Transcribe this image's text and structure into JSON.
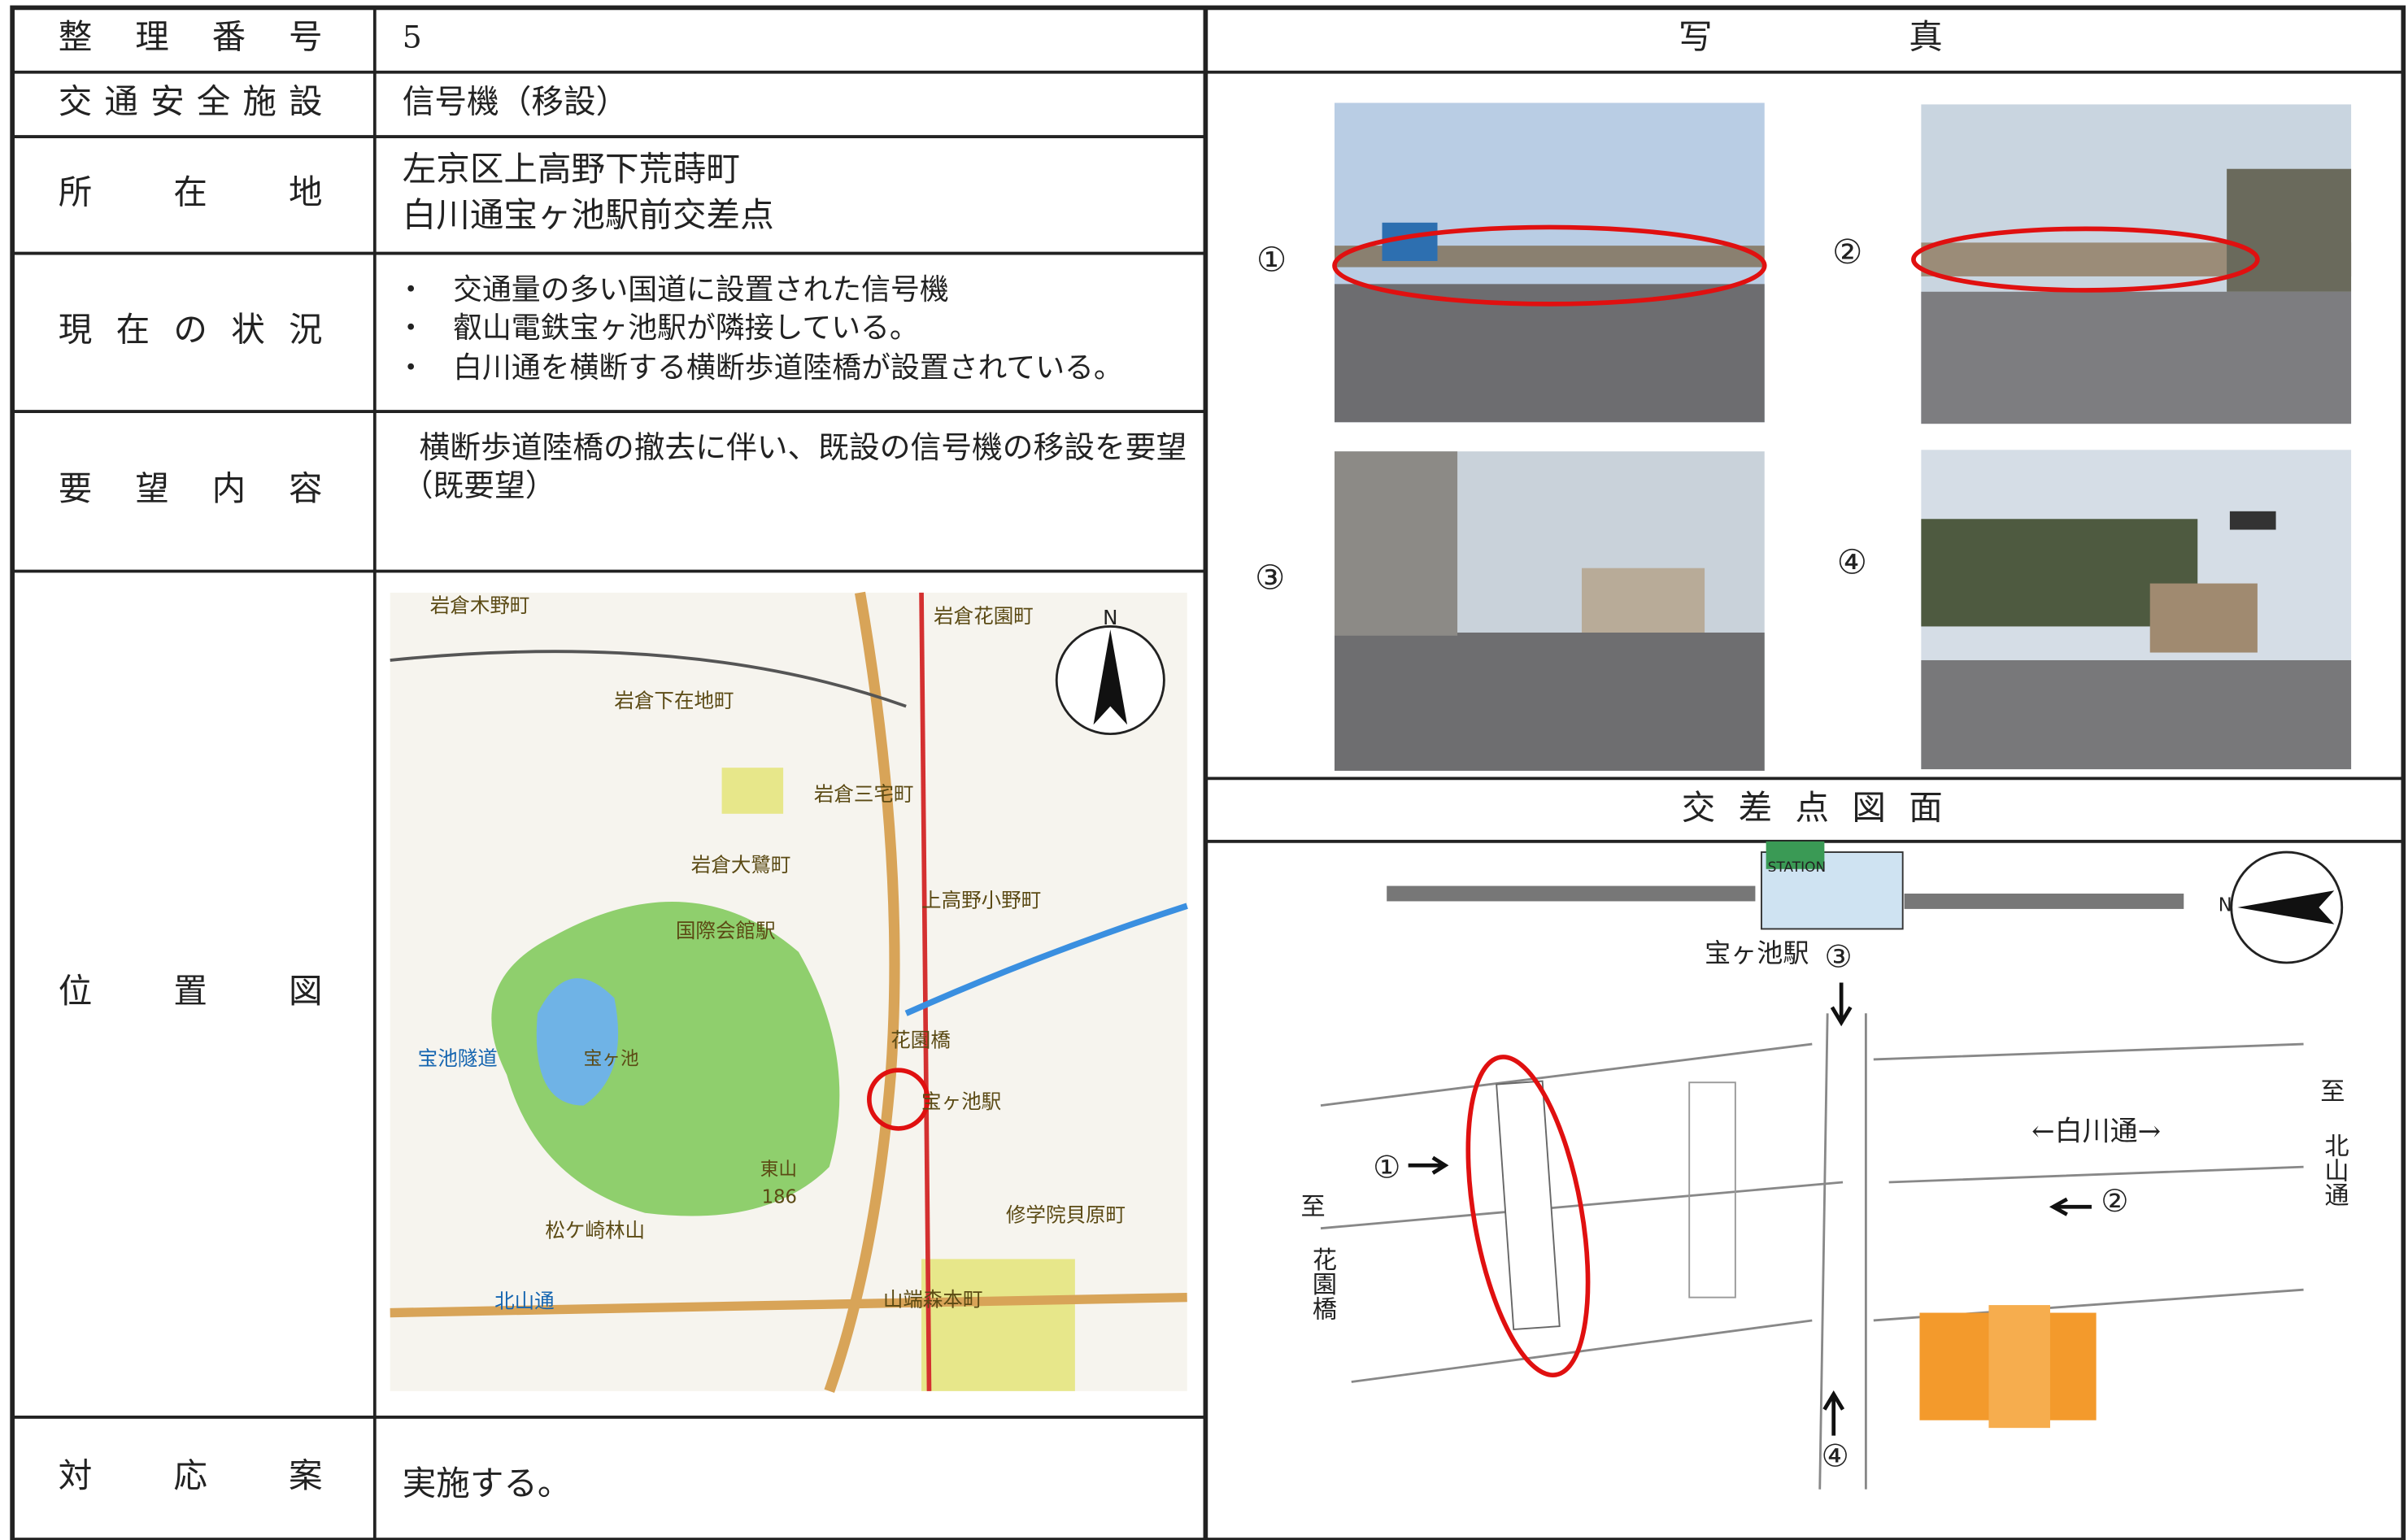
{
  "form": {
    "rows": [
      {
        "label": "整理番号",
        "value": [
          "5"
        ]
      },
      {
        "label": "交通安全施設",
        "value": [
          "信号機（移設）"
        ]
      },
      {
        "label": "所在地",
        "value": [
          "左京区上高野下荒蒔町",
          "白川通宝ヶ池駅前交差点"
        ]
      },
      {
        "label": "現在の状況",
        "bullet": "・",
        "value": [
          "交通量の多い国道に設置された信号機",
          "叡山電鉄宝ヶ池駅が隣接している。",
          "白川通を横断する横断歩道陸橋が設置されている。"
        ]
      },
      {
        "label": "要望内容",
        "value": [
          "横断歩道陸橋の撤去に伴い、既設の信号機の移設を要望",
          "（既要望）"
        ]
      },
      {
        "label": "位置図"
      },
      {
        "label": "対応案",
        "value": [
          "実施する。"
        ]
      }
    ]
  },
  "photos": {
    "title": "写真",
    "labels": [
      "①",
      "②",
      "③",
      "④"
    ]
  },
  "map": {
    "north": "N",
    "labels": [
      "岩倉木野町",
      "岩倉花園町",
      "岩倉下在地町",
      "岩倉三宅町",
      "岩倉大鷺町",
      "上高野小野町",
      "国際会館駅",
      "宝ヶ池",
      "東山",
      "186",
      "松ケ崎林山",
      "修学院貝原町",
      "山端森本町",
      "北山通",
      "宝池隧道",
      "花園橋",
      "宝ヶ池駅"
    ]
  },
  "diagram": {
    "title": "交差点図面",
    "station_sign": "STATION",
    "station": "宝ヶ池駅",
    "north": "N",
    "road": "←白川通→",
    "to_hanazono": [
      "至",
      "花園橋"
    ],
    "to_kitayama": [
      "至",
      "北山通"
    ],
    "markers": [
      "①",
      "②",
      "③",
      "④"
    ]
  }
}
